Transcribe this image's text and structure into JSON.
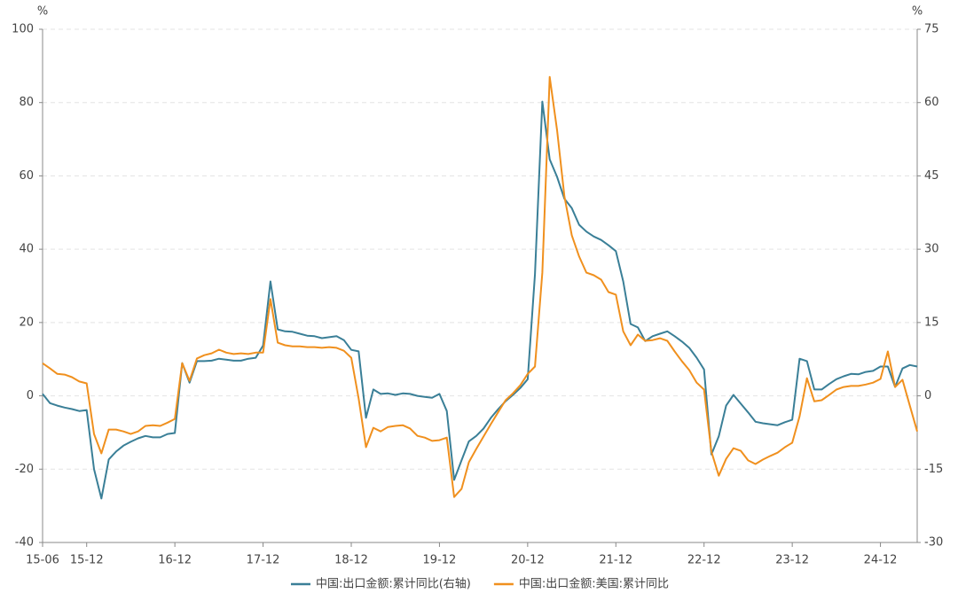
{
  "chart_data": {
    "type": "line",
    "categories": [
      "15-06",
      null,
      null,
      null,
      null,
      null,
      "15-12",
      null,
      null,
      null,
      null,
      null,
      null,
      null,
      null,
      null,
      null,
      null,
      "16-12",
      null,
      null,
      null,
      null,
      null,
      null,
      null,
      null,
      null,
      null,
      null,
      "17-12",
      null,
      null,
      null,
      null,
      null,
      null,
      null,
      null,
      null,
      null,
      null,
      "18-12",
      null,
      null,
      null,
      null,
      null,
      null,
      null,
      null,
      null,
      null,
      null,
      "19-12",
      null,
      null,
      null,
      null,
      null,
      null,
      null,
      null,
      null,
      null,
      null,
      "20-12",
      null,
      null,
      null,
      null,
      null,
      null,
      null,
      null,
      null,
      null,
      null,
      "21-12",
      null,
      null,
      null,
      null,
      null,
      null,
      null,
      null,
      null,
      null,
      null,
      "22-12",
      null,
      null,
      null,
      null,
      null,
      null,
      null,
      null,
      null,
      null,
      null,
      "23-12",
      null,
      null,
      null,
      null,
      null,
      null,
      null,
      null,
      null,
      null,
      null,
      "24-12",
      null,
      null,
      null,
      null,
      null
    ],
    "series": [
      {
        "name": "中国:出口金额:累计同比(右轴)",
        "color": "#3a7f97",
        "axis": "y2",
        "values": [
          0.4,
          -1.5,
          -2,
          -2.4,
          -2.7,
          -3.1,
          -2.9,
          -15,
          -21,
          -13,
          -11.4,
          -10.2,
          -9.4,
          -8.7,
          -8.2,
          -8.5,
          -8.5,
          -7.8,
          -7.6,
          6.7,
          2.7,
          7.1,
          7.1,
          7.2,
          7.6,
          7.4,
          7.2,
          7.2,
          7.6,
          7.8,
          10.3,
          23.4,
          13.6,
          13.2,
          13.1,
          12.7,
          12.3,
          12.2,
          11.8,
          12,
          12.2,
          11.4,
          9.4,
          9.1,
          -4.5,
          1.3,
          0.4,
          0.5,
          0.2,
          0.5,
          0.4,
          0,
          -0.2,
          -0.4,
          0.4,
          -3.1,
          -17.2,
          -13.2,
          -9.3,
          -8.2,
          -6.7,
          -4.5,
          -2.7,
          -1.1,
          0.2,
          1.6,
          3.4,
          24.9,
          60.2,
          48.4,
          44.8,
          40.3,
          38.4,
          35,
          33.6,
          32.6,
          31.9,
          30.8,
          29.6,
          23.4,
          14.7,
          14,
          11.2,
          12.2,
          12.7,
          13.2,
          12.2,
          11.1,
          9.8,
          7.8,
          5.4,
          -12,
          -8.3,
          -2,
          0.2,
          -1.6,
          -3.4,
          -5.3,
          -5.6,
          -5.8,
          -6,
          -5.4,
          -4.9,
          7.6,
          7.1,
          1.3,
          1.3,
          2.4,
          3.4,
          4,
          4.5,
          4.4,
          4.9,
          5.1,
          6,
          6,
          1.8,
          5.6,
          6.3,
          6
        ]
      },
      {
        "name": "中国:出口金额:美国:累计同比",
        "color": "#f0901e",
        "values": [
          8.9,
          7.5,
          6,
          5.8,
          5.1,
          3.9,
          3.4,
          -10.4,
          -15.7,
          -9.2,
          -9.2,
          -9.7,
          -10.4,
          -9.7,
          -8.2,
          -8,
          -8.2,
          -7.3,
          -6.3,
          8.9,
          4.1,
          10.2,
          11.1,
          11.6,
          12.6,
          11.8,
          11.4,
          11.6,
          11.4,
          11.8,
          11.8,
          26.4,
          14.5,
          13.8,
          13.5,
          13.5,
          13.3,
          13.3,
          13.1,
          13.3,
          13.1,
          12.3,
          10.4,
          -0.7,
          -14,
          -8.7,
          -9.7,
          -8.5,
          -8.2,
          -8,
          -8.9,
          -10.9,
          -11.4,
          -12.3,
          -12.1,
          -11.4,
          -27.6,
          -25.4,
          -18.1,
          -14.5,
          -11.1,
          -7.7,
          -4.4,
          -1.2,
          0.7,
          2.9,
          6,
          8,
          33.6,
          87,
          72.5,
          54.4,
          43.8,
          38,
          33.6,
          32.9,
          31.7,
          28.3,
          27.6,
          17.6,
          13.8,
          16.7,
          15,
          15.2,
          15.7,
          15,
          12.1,
          9.4,
          7,
          3.6,
          1.7,
          -15.2,
          -21.8,
          -17.2,
          -14.3,
          -15,
          -17.6,
          -18.6,
          -17.4,
          -16.4,
          -15.5,
          -14,
          -12.8,
          -5.6,
          4.8,
          -1.5,
          -1.2,
          0.2,
          1.7,
          2.4,
          2.7,
          2.7,
          3.1,
          3.6,
          4.6,
          12.1,
          2.4,
          4.4,
          -2.7,
          -9.7
        ]
      }
    ],
    "ylim": [
      -40,
      100
    ],
    "yticks": [
      -40,
      -20,
      0,
      20,
      40,
      60,
      80,
      100
    ],
    "y2lim": [
      -30,
      75
    ],
    "y2ticks": [
      -30,
      -15,
      0,
      15,
      30,
      45,
      60,
      75
    ],
    "y_unit": "%",
    "y2_unit": "%",
    "grid": true,
    "legend": "bottom"
  }
}
